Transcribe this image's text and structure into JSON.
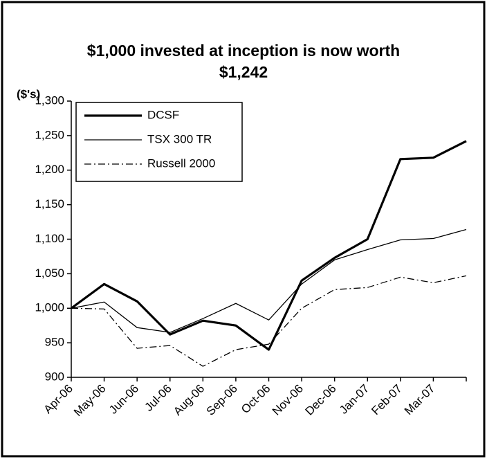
{
  "chart_data": {
    "type": "line",
    "title": "$1,000 invested at inception is now worth $1,242",
    "y_label": "($'s)",
    "categories": [
      "Apr-06",
      "May-06",
      "Jun-06",
      "Jul-06",
      "Aug-06",
      "Sep-06",
      "Oct-06",
      "Nov-06",
      "Dec-06",
      "Jan-07",
      "Feb-07",
      "Mar-07",
      null
    ],
    "series": [
      {
        "name": "DCSF",
        "color": "#000000",
        "line_style": "thick",
        "values": [
          1000,
          1035,
          1010,
          962,
          982,
          975,
          940,
          1040,
          1073,
          1100,
          1216,
          1218,
          1242
        ]
      },
      {
        "name": "TSX 300 TR",
        "color": "#000000",
        "line_style": "solid",
        "values": [
          1000,
          1009,
          972,
          965,
          985,
          1007,
          983,
          1035,
          1070,
          1085,
          1099,
          1101,
          1114
        ]
      },
      {
        "name": "Russell 2000",
        "color": "#000000",
        "line_style": "dash-dot",
        "values": [
          1000,
          999,
          942,
          946,
          916,
          940,
          948,
          1000,
          1027,
          1030,
          1045,
          1037,
          1047
        ]
      }
    ],
    "ylim": [
      900,
      1300
    ],
    "yticks": [
      900,
      950,
      {
        "value": 1000,
        "label": "1,000"
      },
      {
        "value": 1050,
        "label": "1,050"
      },
      {
        "value": 1100,
        "label": "1,100"
      },
      {
        "value": 1150,
        "label": "1,150"
      },
      {
        "value": 1200,
        "label": "1,200"
      },
      {
        "value": 1250,
        "label": "1,250"
      },
      {
        "value": 1300,
        "label": "1,300"
      }
    ],
    "grid": false,
    "legend": "top-left"
  }
}
